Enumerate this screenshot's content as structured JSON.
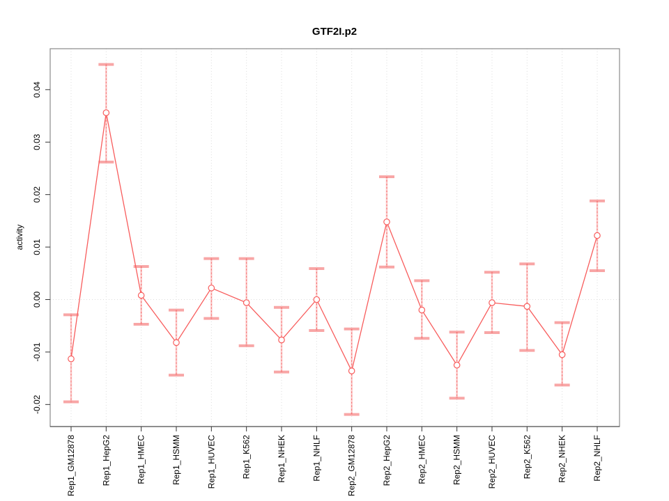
{
  "chart_data": {
    "type": "line",
    "title": "GTF2I.p2",
    "ylabel": "activity",
    "xlabel": "",
    "legend": "none",
    "grid": "dotted vertical gridline at every category; dotted horizontal line at y=0",
    "categories": [
      "Rep1_GM12878",
      "Rep1_HepG2",
      "Rep1_HMEC",
      "Rep1_HSMM",
      "Rep1_HUVEC",
      "Rep1_K562",
      "Rep1_NHEK",
      "Rep1_NHLF",
      "Rep2_GM12878",
      "Rep2_HepG2",
      "Rep2_HMEC",
      "Rep2_HSMM",
      "Rep2_HUVEC",
      "Rep2_K562",
      "Rep2_NHEK",
      "Rep2_NHLF"
    ],
    "series": [
      {
        "name": "activity",
        "marker": "open-circle",
        "values": [
          -0.0113,
          0.0356,
          0.0008,
          -0.0082,
          0.0022,
          -0.0006,
          -0.0077,
          0.0,
          -0.0136,
          0.0148,
          -0.002,
          -0.0125,
          -0.0006,
          -0.0013,
          -0.0105,
          0.0122
        ],
        "ci_low": [
          -0.0195,
          0.0262,
          -0.0047,
          -0.0144,
          -0.0036,
          -0.0088,
          -0.0138,
          -0.0059,
          -0.0219,
          0.0062,
          -0.0074,
          -0.0188,
          -0.0063,
          -0.0097,
          -0.0163,
          0.0055
        ],
        "ci_high": [
          -0.0029,
          0.0448,
          0.0063,
          -0.002,
          0.0078,
          0.0078,
          -0.0015,
          0.0059,
          -0.0056,
          0.0234,
          0.0036,
          -0.0062,
          0.0052,
          0.0068,
          -0.0044,
          0.0188
        ]
      }
    ],
    "y_ticks": [
      -0.02,
      -0.01,
      0,
      0.01,
      0.02,
      0.03,
      0.04
    ],
    "y_tick_labels": [
      "-0.02",
      "-0.01",
      "0.00",
      "0.01",
      "0.02",
      "0.03",
      "0.04"
    ],
    "ylim": [
      -0.0242,
      0.0478
    ],
    "colors": {
      "line": "#f85c5c",
      "error_cap": "rgba(244,106,106,0.6)",
      "error_band": "rgba(248,110,110,0.35)",
      "grid": "#dcdcdc",
      "box": "#8a8a8a",
      "axis": "#333333",
      "text": "#000000",
      "background": "#ffffff"
    }
  }
}
